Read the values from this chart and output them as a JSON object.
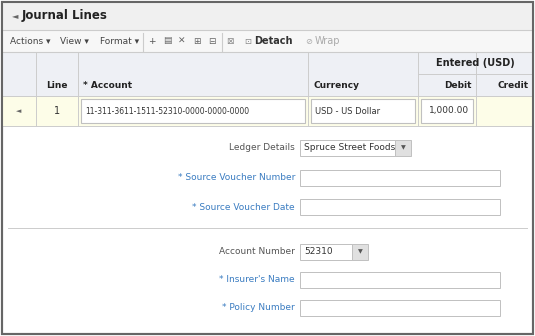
{
  "title": "Journal Lines",
  "bg_color": "#ffffff",
  "outer_border_color": "#666666",
  "title_bar_bg": "#f0f0f0",
  "toolbar_bg": "#f7f7f7",
  "table_header_bg": "#eef0f5",
  "table_row_bg": "#fdfde8",
  "entered_usd_label": "Entered (USD)",
  "col_headers": [
    "",
    "Line",
    "* Account",
    "Currency",
    "Debit",
    "Credit"
  ],
  "row_data": {
    "line": "1",
    "account": "11-311-3611-1511-52310-0000-0000-0000",
    "currency": "USD - US Dollar",
    "debit": "1,000.00",
    "credit": ""
  },
  "text_color": "#333333",
  "label_color": "#555555",
  "required_color": "#3a7cc1",
  "input_border": "#c0c0c0",
  "input_bg": "#ffffff",
  "dd_bg": "#e0e0e0",
  "toolbar_text": "#444444",
  "detach_color": "#333333",
  "wrap_color": "#aaaaaa"
}
